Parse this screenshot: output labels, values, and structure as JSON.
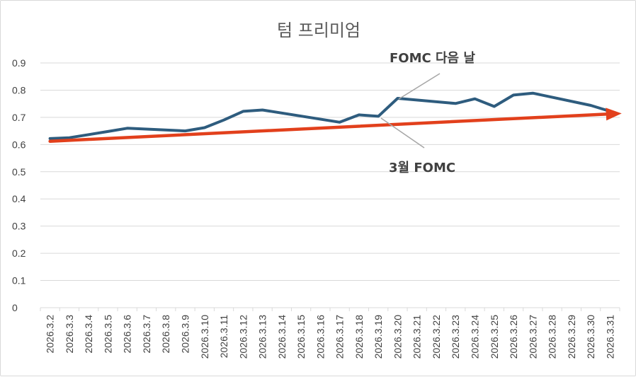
{
  "chart_data": {
    "type": "line",
    "title": "텀 프리미엄",
    "xlabel": "",
    "ylabel": "",
    "ylim": [
      0,
      0.9
    ],
    "yticks": [
      "0",
      "0.1",
      "0.2",
      "0.3",
      "0.4",
      "0.5",
      "0.6",
      "0.7",
      "0.8",
      "0.9"
    ],
    "grid": true,
    "legend": "none",
    "categories": [
      "2026.3.2",
      "2026.3.3",
      "2026.3.4",
      "2026.3.5",
      "2026.3.6",
      "2026.3.7",
      "2026.3.8",
      "2026.3.9",
      "2026.3.10",
      "2026.3.11",
      "2026.3.12",
      "2026.3.13",
      "2026.3.14",
      "2026.3.15",
      "2026.3.16",
      "2026.3.17",
      "2026.3.18",
      "2026.3.19",
      "2026.3.20",
      "2026.3.21",
      "2026.3.22",
      "2026.3.23",
      "2026.3.24",
      "2026.3.25",
      "2026.3.26",
      "2026.3.27",
      "2026.3.28",
      "2026.3.29",
      "2026.3.30",
      "2026.3.31"
    ],
    "series": [
      {
        "color": "#2e5c7e",
        "points": [
          [
            "2026.3.2",
            0.622
          ],
          [
            "2026.3.3",
            0.625
          ],
          [
            "2026.3.5",
            0.648
          ],
          [
            "2026.3.6",
            0.66
          ],
          [
            "2026.3.9",
            0.65
          ],
          [
            "2026.3.10",
            0.662
          ],
          [
            "2026.3.11",
            0.69
          ],
          [
            "2026.3.12",
            0.722
          ],
          [
            "2026.3.13",
            0.727
          ],
          [
            "2026.3.17",
            0.682
          ],
          [
            "2026.3.18",
            0.709
          ],
          [
            "2026.3.19",
            0.704
          ],
          [
            "2026.3.20",
            0.77
          ],
          [
            "2026.3.23",
            0.751
          ],
          [
            "2026.3.24",
            0.768
          ],
          [
            "2026.3.25",
            0.74
          ],
          [
            "2026.3.26",
            0.782
          ],
          [
            "2026.3.27",
            0.789
          ],
          [
            "2026.3.30",
            0.744
          ],
          [
            "2026.3.31",
            0.722
          ]
        ]
      },
      {
        "type": "trend-arrow",
        "color": "#e2401c",
        "start": [
          "2026.3.2",
          0.612
        ],
        "end": [
          "2026.3.31",
          0.716
        ]
      }
    ],
    "annotations": [
      {
        "text": "FOMC 다음 날",
        "points_to": [
          "2026.3.20",
          0.77
        ]
      },
      {
        "text": "3월 FOMC",
        "points_to": [
          "2026.3.19",
          0.704
        ]
      }
    ]
  }
}
